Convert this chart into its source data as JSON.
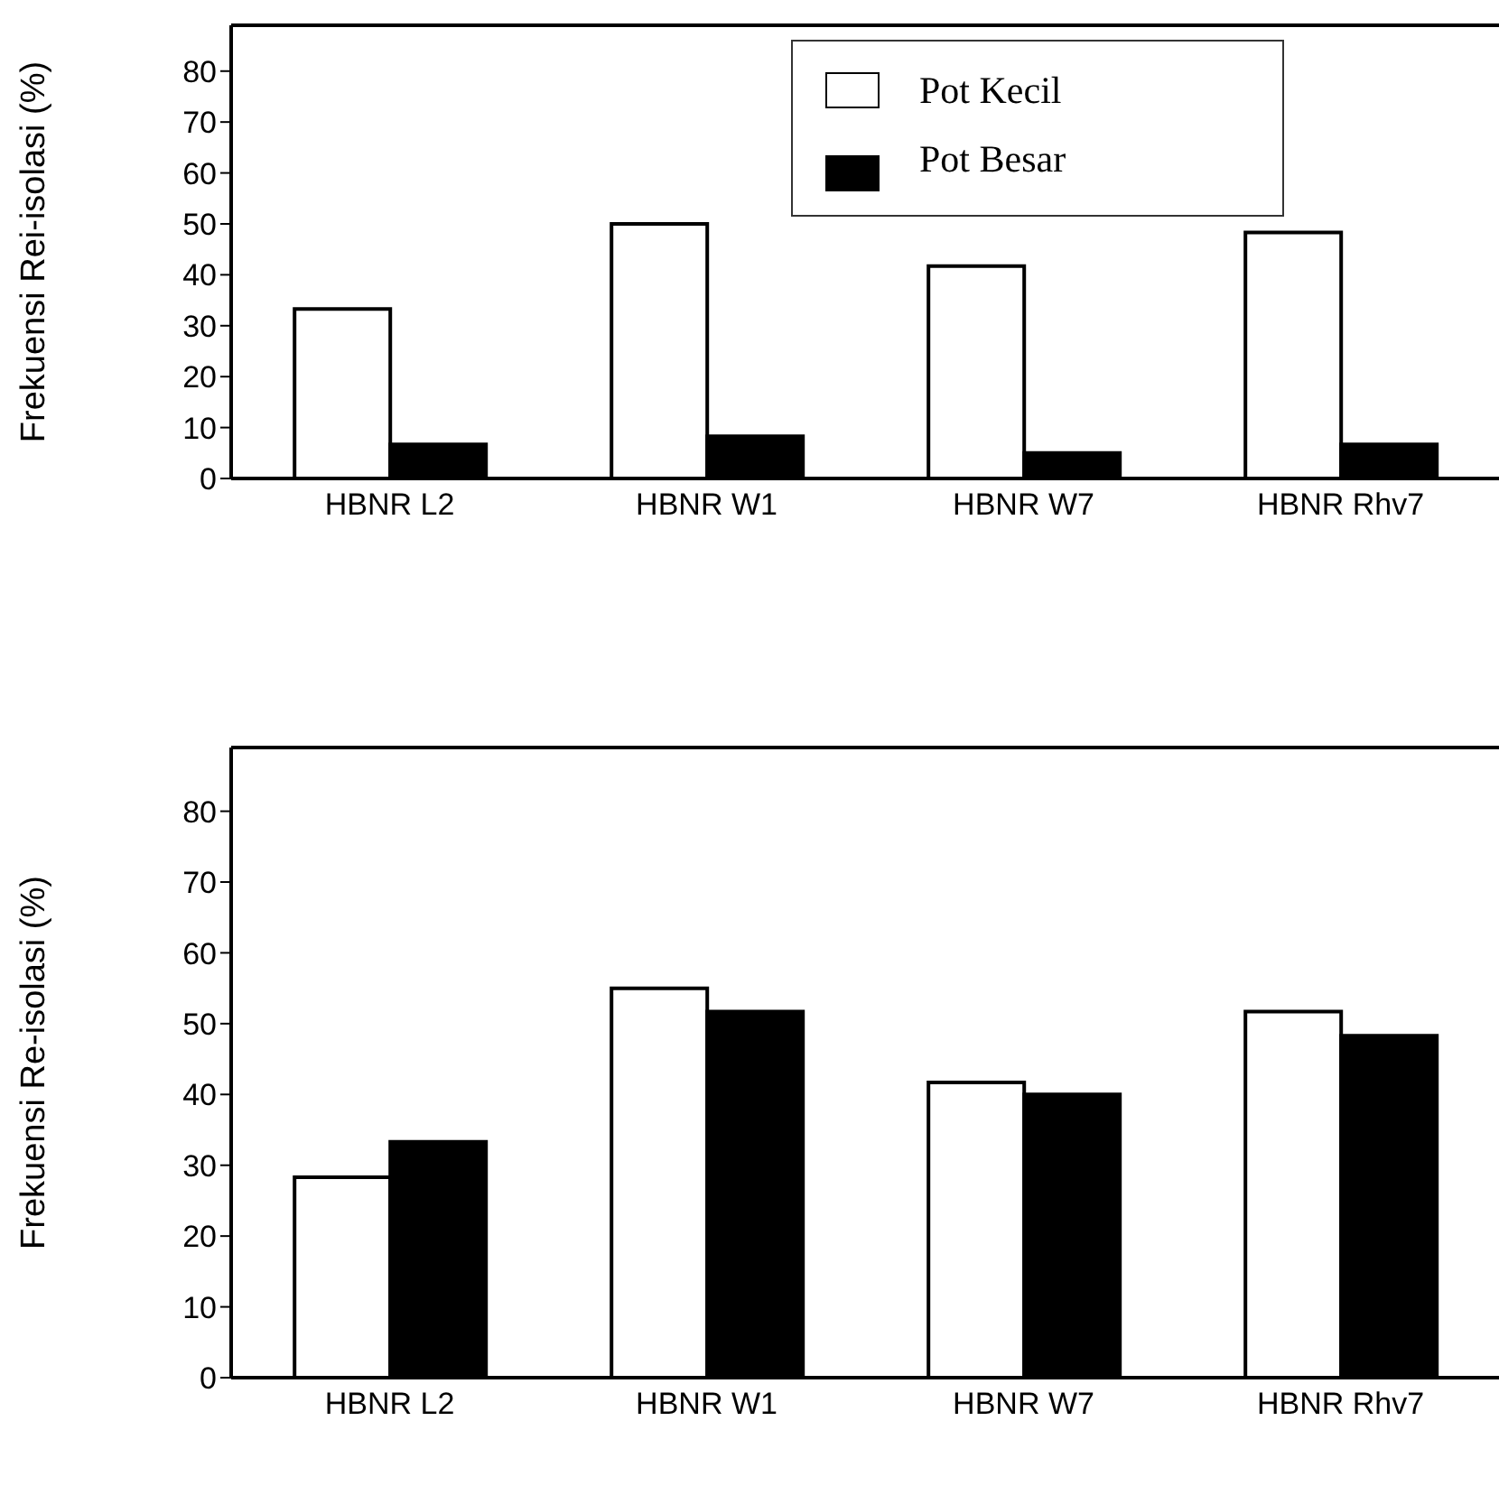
{
  "chart_data": [
    {
      "type": "bar",
      "ylabel": "Frekuensi Rei-isolasi (%)",
      "categories": [
        "HBNR L2",
        "HBNR W1",
        "HBNR W7",
        "HBNR Rhv7"
      ],
      "ylim": [
        0,
        89
      ],
      "yticks": [
        0,
        10,
        20,
        30,
        40,
        50,
        60,
        70,
        80
      ],
      "legend": "top",
      "grid": false,
      "series": [
        {
          "name": "Pot Kecil",
          "color": "#ffffff",
          "values": [
            33.3,
            50,
            41.7,
            48.3
          ]
        },
        {
          "name": "Pot Besar",
          "color": "#000000",
          "values": [
            6.7,
            8.3,
            5,
            6.7
          ]
        }
      ]
    },
    {
      "type": "bar",
      "ylabel": "Frekuensi  Re-isolasi (%)",
      "categories": [
        "HBNR L2",
        "HBNR W1",
        "HBNR W7",
        "HBNR Rhv7"
      ],
      "ylim": [
        0,
        89
      ],
      "yticks": [
        0,
        10,
        20,
        30,
        40,
        50,
        60,
        70,
        80
      ],
      "legend": false,
      "grid": false,
      "series": [
        {
          "color": "#ffffff",
          "values": [
            28.3,
            55,
            41.7,
            51.7
          ]
        },
        {
          "color": "#000000",
          "values": [
            33.3,
            51.7,
            40,
            48.3
          ]
        }
      ]
    }
  ]
}
